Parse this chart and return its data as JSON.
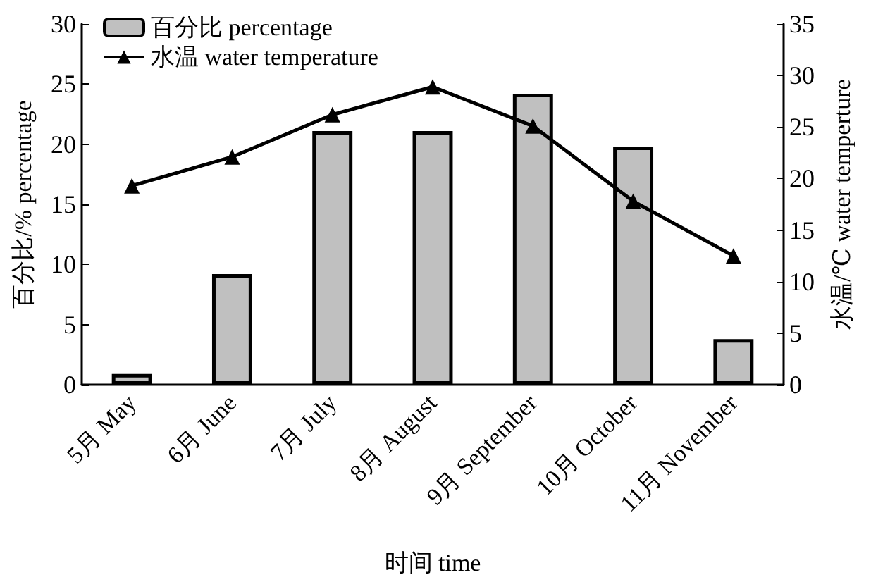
{
  "chart_data": {
    "type": "bar",
    "xlabel": "时间 time",
    "ylabel": "百分比/% percentage",
    "y2label": "水温/℃ water temperture",
    "categories": [
      "5月 May",
      "6月 June",
      "7月 July",
      "8月 August",
      "9月 September",
      "10月 October",
      "11月 November"
    ],
    "series": [
      {
        "name": "百分比 percentage",
        "color": "#c0c0c0",
        "values": [
          0.9,
          9.2,
          21.1,
          21.1,
          24.2,
          19.8,
          3.8
        ]
      },
      {
        "name": "水温 water temperature",
        "type": "line",
        "axis": "y2",
        "color": "#000000",
        "marker": "triangle",
        "values": [
          19.3,
          22.1,
          26.2,
          28.9,
          25.1,
          17.8,
          12.5
        ]
      }
    ],
    "ylim": [
      0,
      30
    ],
    "yticks": [
      0,
      5,
      10,
      15,
      20,
      25,
      30
    ],
    "y2lim": [
      0,
      35
    ],
    "y2ticks": [
      0,
      5,
      10,
      15,
      20,
      25,
      30,
      35
    ],
    "grid": false,
    "legend": "top left"
  }
}
